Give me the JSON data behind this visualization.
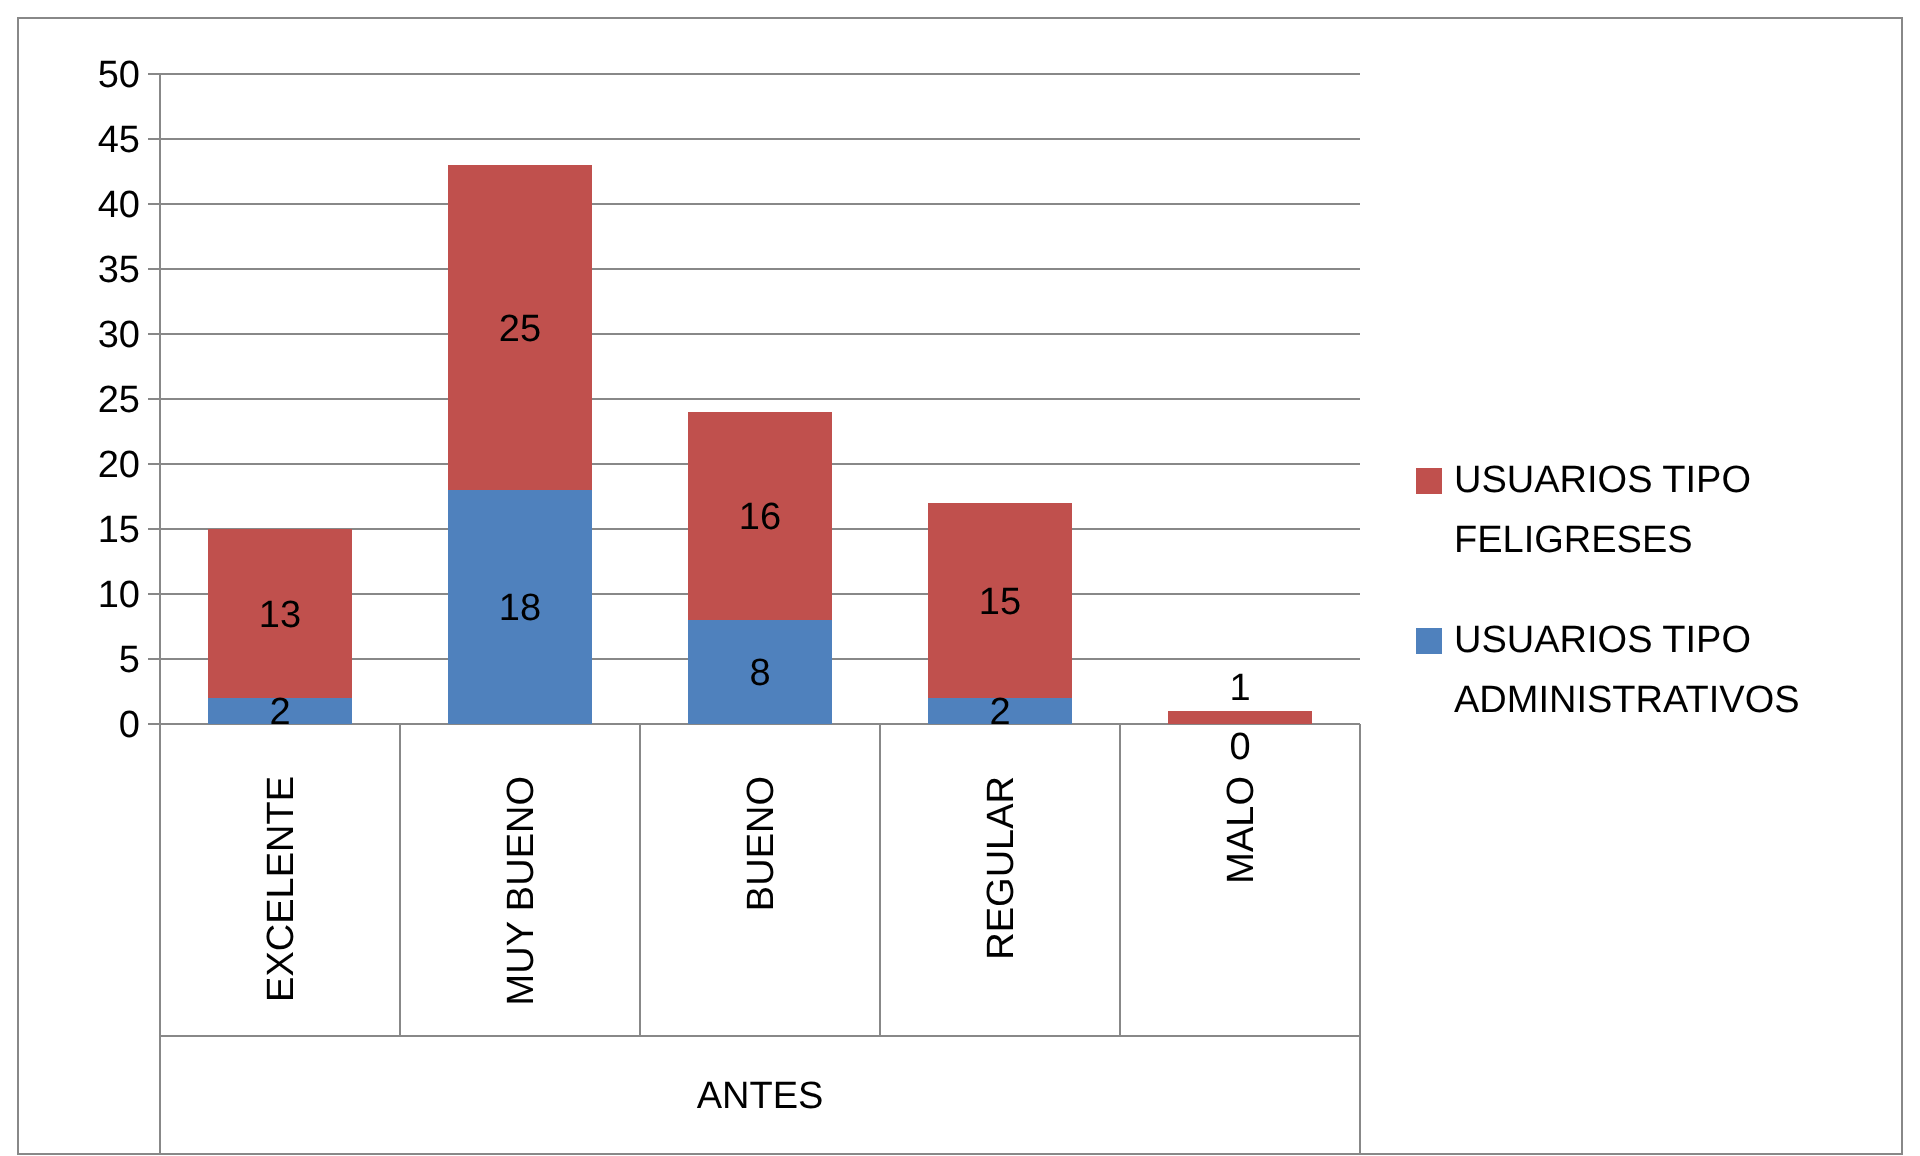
{
  "chart_data": {
    "type": "bar",
    "stacked": true,
    "xlabel": "ANTES",
    "categories": [
      "EXCELENTE",
      "MUY BUENO",
      "BUENO",
      "REGULAR",
      "MALO"
    ],
    "series": [
      {
        "name": "USUARIOS TIPO ADMINISTRATIVOS",
        "color": "#4f81bd",
        "values": [
          2,
          18,
          8,
          2,
          0
        ]
      },
      {
        "name": "USUARIOS TIPO FELIGRESES",
        "color": "#c0504d",
        "values": [
          13,
          25,
          16,
          15,
          1
        ]
      }
    ],
    "ylim": [
      0,
      50
    ],
    "yticks": [
      0,
      5,
      10,
      15,
      20,
      25,
      30,
      35,
      40,
      45,
      50
    ],
    "grid": "y",
    "legend": "right",
    "data_labels": true
  }
}
